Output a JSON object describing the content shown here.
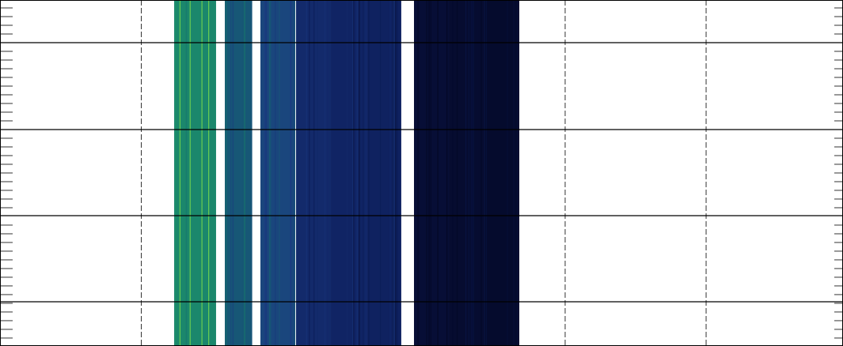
{
  "chart_data": {
    "type": "heatmap",
    "title": "",
    "xlabel": "",
    "ylabel": "",
    "x_tick_labels": [],
    "y_tick_labels": [],
    "grid": true,
    "colormap": [
      "#040725",
      "#0d1f5c",
      "#1c3a82",
      "#146a6e",
      "#1f9a6a",
      "#72d24e"
    ],
    "column_bands": [
      {
        "x0": 0.2066,
        "x1": 0.2563,
        "intensity": 0.72
      },
      {
        "x0": 0.2667,
        "x1": 0.2986,
        "intensity": 0.52
      },
      {
        "x0": 0.3089,
        "x1": 0.3502,
        "intensity": 0.45
      },
      {
        "x0": 0.3512,
        "x1": 0.3925,
        "intensity": 0.28
      },
      {
        "x0": 0.3925,
        "x1": 0.4357,
        "intensity": 0.24
      },
      {
        "x0": 0.4357,
        "x1": 0.476,
        "intensity": 0.22
      },
      {
        "x0": 0.4911,
        "x1": 0.5324,
        "intensity": 0.06
      },
      {
        "x0": 0.5324,
        "x1": 0.5737,
        "intensity": 0.04
      },
      {
        "x0": 0.5737,
        "x1": 0.616,
        "intensity": 0.03
      }
    ]
  }
}
